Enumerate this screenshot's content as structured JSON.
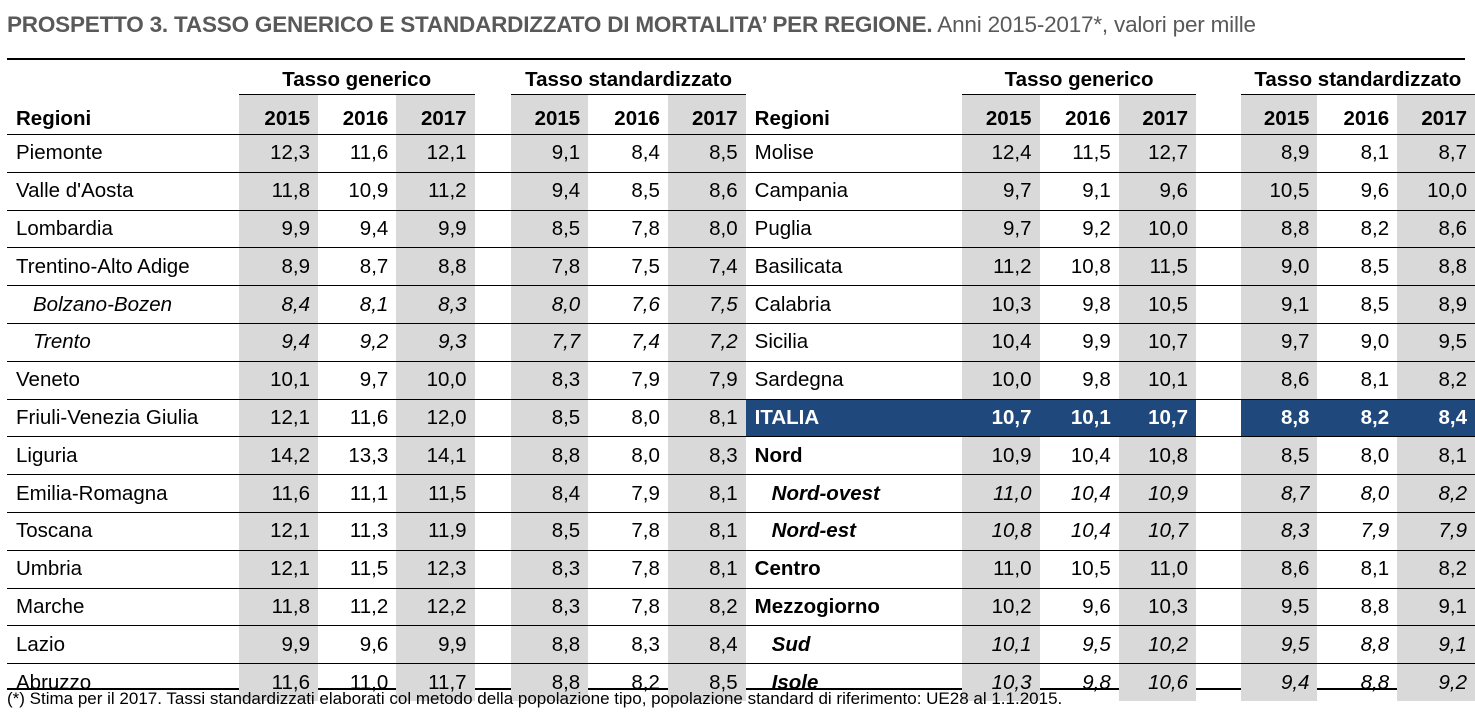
{
  "title": {
    "bold": "PROSPETTO 3. TASSO GENERICO E STANDARDIZZATO DI MORTALITA’ PER REGIONE.",
    "rest": " Anni 2015-2017*, valori per mille"
  },
  "headers": {
    "regioni": "Regioni",
    "tasso_generico": "Tasso generico",
    "tasso_standardizzato": "Tasso standardizzato",
    "years": [
      "2015",
      "2016",
      "2017"
    ]
  },
  "rows": [
    {
      "left": {
        "name": "Piemonte",
        "style": "normal",
        "g": [
          "12,3",
          "11,6",
          "12,1"
        ],
        "s": [
          "9,1",
          "8,4",
          "8,5"
        ]
      },
      "right": {
        "name": "Molise",
        "style": "normal",
        "g": [
          "12,4",
          "11,5",
          "12,7"
        ],
        "s": [
          "8,9",
          "8,1",
          "8,7"
        ]
      }
    },
    {
      "left": {
        "name": "Valle d'Aosta",
        "style": "normal",
        "g": [
          "11,8",
          "10,9",
          "11,2"
        ],
        "s": [
          "9,4",
          "8,5",
          "8,6"
        ]
      },
      "right": {
        "name": "Campania",
        "style": "normal",
        "g": [
          "9,7",
          "9,1",
          "9,6"
        ],
        "s": [
          "10,5",
          "9,6",
          "10,0"
        ]
      }
    },
    {
      "left": {
        "name": "Lombardia",
        "style": "normal",
        "g": [
          "9,9",
          "9,4",
          "9,9"
        ],
        "s": [
          "8,5",
          "7,8",
          "8,0"
        ]
      },
      "right": {
        "name": "Puglia",
        "style": "normal",
        "g": [
          "9,7",
          "9,2",
          "10,0"
        ],
        "s": [
          "8,8",
          "8,2",
          "8,6"
        ]
      }
    },
    {
      "left": {
        "name": "Trentino-Alto Adige",
        "style": "normal",
        "g": [
          "8,9",
          "8,7",
          "8,8"
        ],
        "s": [
          "7,8",
          "7,5",
          "7,4"
        ]
      },
      "right": {
        "name": "Basilicata",
        "style": "normal",
        "g": [
          "11,2",
          "10,8",
          "11,5"
        ],
        "s": [
          "9,0",
          "8,5",
          "8,8"
        ]
      }
    },
    {
      "left": {
        "name": "Bolzano-Bozen",
        "style": "italic",
        "g": [
          "8,4",
          "8,1",
          "8,3"
        ],
        "s": [
          "8,0",
          "7,6",
          "7,5"
        ]
      },
      "right": {
        "name": "Calabria",
        "style": "normal",
        "g": [
          "10,3",
          "9,8",
          "10,5"
        ],
        "s": [
          "9,1",
          "8,5",
          "8,9"
        ]
      }
    },
    {
      "left": {
        "name": "Trento",
        "style": "italic",
        "g": [
          "9,4",
          "9,2",
          "9,3"
        ],
        "s": [
          "7,7",
          "7,4",
          "7,2"
        ]
      },
      "right": {
        "name": "Sicilia",
        "style": "normal",
        "g": [
          "10,4",
          "9,9",
          "10,7"
        ],
        "s": [
          "9,7",
          "9,0",
          "9,5"
        ]
      }
    },
    {
      "left": {
        "name": "Veneto",
        "style": "normal",
        "g": [
          "10,1",
          "9,7",
          "10,0"
        ],
        "s": [
          "8,3",
          "7,9",
          "7,9"
        ]
      },
      "right": {
        "name": "Sardegna",
        "style": "normal",
        "g": [
          "10,0",
          "9,8",
          "10,1"
        ],
        "s": [
          "8,6",
          "8,1",
          "8,2"
        ]
      }
    },
    {
      "left": {
        "name": "Friuli-Venezia Giulia",
        "style": "normal",
        "g": [
          "12,1",
          "11,6",
          "12,0"
        ],
        "s": [
          "8,5",
          "8,0",
          "8,1"
        ]
      },
      "right": {
        "name": "ITALIA",
        "style": "highlight",
        "g": [
          "10,7",
          "10,1",
          "10,7"
        ],
        "s": [
          "8,8",
          "8,2",
          "8,4"
        ]
      }
    },
    {
      "left": {
        "name": "Liguria",
        "style": "normal",
        "g": [
          "14,2",
          "13,3",
          "14,1"
        ],
        "s": [
          "8,8",
          "8,0",
          "8,3"
        ]
      },
      "right": {
        "name": "Nord",
        "style": "bold",
        "g": [
          "10,9",
          "10,4",
          "10,8"
        ],
        "s": [
          "8,5",
          "8,0",
          "8,1"
        ]
      }
    },
    {
      "left": {
        "name": "Emilia-Romagna",
        "style": "normal",
        "g": [
          "11,6",
          "11,1",
          "11,5"
        ],
        "s": [
          "8,4",
          "7,9",
          "8,1"
        ]
      },
      "right": {
        "name": "Nord-ovest",
        "style": "bolditalic",
        "g": [
          "11,0",
          "10,4",
          "10,9"
        ],
        "s": [
          "8,7",
          "8,0",
          "8,2"
        ]
      }
    },
    {
      "left": {
        "name": "Toscana",
        "style": "normal",
        "g": [
          "12,1",
          "11,3",
          "11,9"
        ],
        "s": [
          "8,5",
          "7,8",
          "8,1"
        ]
      },
      "right": {
        "name": "Nord-est",
        "style": "bolditalic",
        "g": [
          "10,8",
          "10,4",
          "10,7"
        ],
        "s": [
          "8,3",
          "7,9",
          "7,9"
        ]
      }
    },
    {
      "left": {
        "name": "Umbria",
        "style": "normal",
        "g": [
          "12,1",
          "11,5",
          "12,3"
        ],
        "s": [
          "8,3",
          "7,8",
          "8,1"
        ]
      },
      "right": {
        "name": "Centro",
        "style": "bold",
        "g": [
          "11,0",
          "10,5",
          "11,0"
        ],
        "s": [
          "8,6",
          "8,1",
          "8,2"
        ]
      }
    },
    {
      "left": {
        "name": "Marche",
        "style": "normal",
        "g": [
          "11,8",
          "11,2",
          "12,2"
        ],
        "s": [
          "8,3",
          "7,8",
          "8,2"
        ]
      },
      "right": {
        "name": "Mezzogiorno",
        "style": "bold",
        "g": [
          "10,2",
          "9,6",
          "10,3"
        ],
        "s": [
          "9,5",
          "8,8",
          "9,1"
        ]
      }
    },
    {
      "left": {
        "name": "Lazio",
        "style": "normal",
        "g": [
          "9,9",
          "9,6",
          "9,9"
        ],
        "s": [
          "8,8",
          "8,3",
          "8,4"
        ]
      },
      "right": {
        "name": "Sud",
        "style": "bolditalic-sub",
        "g": [
          "10,1",
          "9,5",
          "10,2"
        ],
        "s": [
          "9,5",
          "8,8",
          "9,1"
        ]
      }
    },
    {
      "left": {
        "name": "Abruzzo",
        "style": "normal",
        "g": [
          "11,6",
          "11,0",
          "11,7"
        ],
        "s": [
          "8,8",
          "8,2",
          "8,5"
        ]
      },
      "right": {
        "name": "Isole",
        "style": "bolditalic-sub",
        "g": [
          "10,3",
          "9,8",
          "10,6"
        ],
        "s": [
          "9,4",
          "8,8",
          "9,2"
        ]
      }
    }
  ],
  "footnote": "(*) Stima per il 2017. Tassi standardizzati elaborati col metodo della popolazione tipo, popolazione standard di riferimento: UE28 al 1.1.2015."
}
